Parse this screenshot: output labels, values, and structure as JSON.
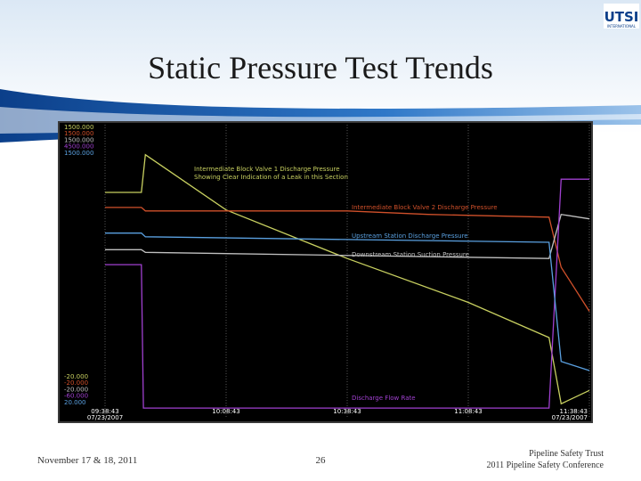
{
  "slide": {
    "title": "Static Pressure Test Trends",
    "logo": "UTSI",
    "logo_sub": "INTERNATIONAL",
    "footer_left": "November 17 & 18, 2011",
    "page_number": "26",
    "footer_right_1": "Pipeline Safety Trust",
    "footer_right_2": "2011 Pipeline Safety Conference"
  },
  "chart_data": {
    "type": "line",
    "annotation": "Showing Clear Indication of a Leak in this Section",
    "start_date": "07/23/2007",
    "end_date": "07/23/2007",
    "xlim": [
      0,
      120
    ],
    "xticks": [
      {
        "value": 0,
        "label": "09:38:43"
      },
      {
        "value": 30,
        "label": "10:08:43"
      },
      {
        "value": 60,
        "label": "10:38:43"
      },
      {
        "value": 90,
        "label": "11:08:43"
      },
      {
        "value": 120,
        "label": "11:38:43"
      }
    ],
    "grid": true,
    "series": [
      {
        "name": "Intermediate Block Valve 1 Discharge Pressure",
        "color": "#c8d060",
        "ylim": [
          -20,
          1500
        ],
        "yticks": [
          {
            "value": -20,
            "label": "-20.000"
          },
          {
            "value": 1500,
            "label": "1500.000"
          }
        ],
        "x": [
          0,
          9,
          10,
          30,
          60,
          90,
          110,
          113,
          120
        ],
        "values": [
          1150,
          1150,
          1345,
          1059,
          808,
          581,
          399,
          57,
          126
        ]
      },
      {
        "name": "Intermediate Block Valve 2 Discharge Pressure",
        "color": "#d0502a",
        "ylim": [
          -20,
          1500
        ],
        "yticks": [
          {
            "value": -20,
            "label": "-20.000"
          },
          {
            "value": 1500,
            "label": "1500.000"
          }
        ],
        "x": [
          0,
          9,
          10,
          60,
          80,
          110,
          113,
          120
        ],
        "values": [
          1072,
          1072,
          1054,
          1054,
          1036,
          1022,
          763,
          535
        ]
      },
      {
        "name": "Downstream Station Suction Pressure",
        "color": "#c0c0c0",
        "ylim": [
          -20,
          1500
        ],
        "yticks": [
          {
            "value": -20,
            "label": "-20.000"
          },
          {
            "value": 1500,
            "label": "1500.000"
          }
        ],
        "x": [
          0,
          9,
          10,
          110,
          113,
          120
        ],
        "values": [
          854,
          854,
          840,
          808,
          1036,
          1013
        ]
      },
      {
        "name": "Discharge Flow Rate",
        "color": "#a040d0",
        "ylim": [
          -60,
          4500
        ],
        "yticks": [
          {
            "value": -60,
            "label": "-60.000"
          },
          {
            "value": 4500,
            "label": "4500.000"
          }
        ],
        "x": [
          0,
          9,
          9.5,
          110,
          113,
          120
        ],
        "values": [
          2329,
          2329,
          104,
          104,
          3654,
          3654
        ]
      },
      {
        "name": "Upstream Station Discharge Pressure",
        "color": "#5aa0e0",
        "ylim": [
          20,
          1500
        ],
        "yticks": [
          {
            "value": 20,
            "label": "20.000"
          },
          {
            "value": 1500,
            "label": "1500.000"
          }
        ],
        "x": [
          0,
          9,
          10,
          110,
          113,
          120
        ],
        "values": [
          954,
          954,
          936,
          908,
          308,
          262
        ]
      }
    ]
  }
}
